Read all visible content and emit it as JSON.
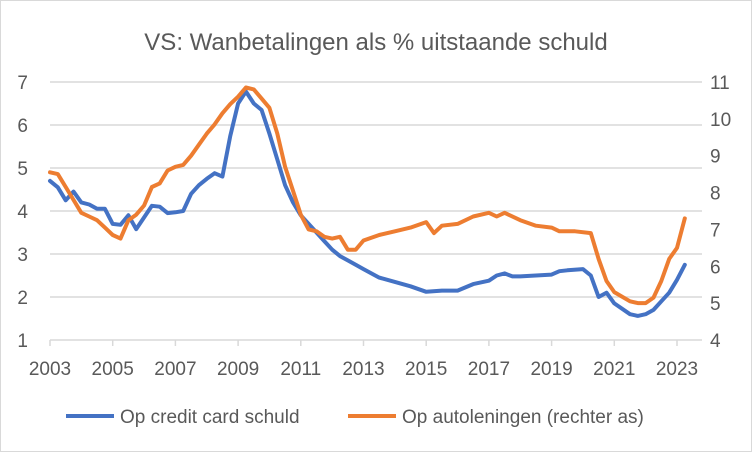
{
  "chart_data": {
    "type": "line",
    "title": "VS: Wanbetalingen als % uitstaande schuld",
    "xlabel": "",
    "ylabel": "",
    "x_ticks": [
      "2003",
      "2005",
      "2007",
      "2009",
      "2011",
      "2013",
      "2015",
      "2017",
      "2019",
      "2021",
      "2023"
    ],
    "x_tick_values": [
      2003,
      2005,
      2007,
      2009,
      2011,
      2013,
      2015,
      2017,
      2019,
      2021,
      2023
    ],
    "xlim": [
      2003,
      2023.25
    ],
    "ylim_left": [
      1,
      7
    ],
    "ylim_right": [
      4,
      11
    ],
    "y_ticks_left": [
      "1",
      "2",
      "3",
      "4",
      "5",
      "6",
      "7"
    ],
    "y_ticks_right": [
      "4",
      "5",
      "6",
      "7",
      "8",
      "9",
      "10",
      "11"
    ],
    "grid": true,
    "legend_position": "bottom",
    "colors": {
      "credit": "#4472C4",
      "auto": "#ED7D31",
      "grid": "#D9D9D9",
      "text": "#595959"
    },
    "series": [
      {
        "name": "Op credit card schuld",
        "axis": "left",
        "x": [
          2003,
          2003.25,
          2003.5,
          2003.75,
          2004,
          2004.25,
          2004.5,
          2004.75,
          2005,
          2005.25,
          2005.5,
          2005.75,
          2006,
          2006.25,
          2006.5,
          2006.75,
          2007,
          2007.25,
          2007.5,
          2007.75,
          2008,
          2008.25,
          2008.5,
          2008.75,
          2009,
          2009.25,
          2009.5,
          2009.75,
          2010,
          2010.25,
          2010.5,
          2010.75,
          2011,
          2011.25,
          2011.5,
          2011.75,
          2012,
          2012.25,
          2012.5,
          2012.75,
          2013,
          2013.5,
          2014,
          2014.5,
          2015,
          2015.5,
          2016,
          2016.5,
          2017,
          2017.25,
          2017.5,
          2017.75,
          2018,
          2018.5,
          2019,
          2019.25,
          2019.5,
          2020,
          2020.25,
          2020.5,
          2020.75,
          2021,
          2021.5,
          2021.75,
          2022,
          2022.25,
          2022.5,
          2022.75,
          2023,
          2023.25
        ],
        "values": [
          4.7,
          4.55,
          4.25,
          4.45,
          4.2,
          4.15,
          4.05,
          4.05,
          3.7,
          3.68,
          3.9,
          3.58,
          3.85,
          4.12,
          4.1,
          3.95,
          3.97,
          4.0,
          4.4,
          4.6,
          4.75,
          4.88,
          4.8,
          5.75,
          6.5,
          6.78,
          6.5,
          6.35,
          5.8,
          5.2,
          4.6,
          4.2,
          3.9,
          3.7,
          3.5,
          3.3,
          3.1,
          2.95,
          2.85,
          2.75,
          2.65,
          2.45,
          2.35,
          2.25,
          2.12,
          2.15,
          2.15,
          2.3,
          2.38,
          2.5,
          2.55,
          2.48,
          2.48,
          2.5,
          2.52,
          2.6,
          2.62,
          2.65,
          2.5,
          2.0,
          2.1,
          1.85,
          1.6,
          1.56,
          1.6,
          1.7,
          1.9,
          2.1,
          2.4,
          2.75
        ]
      },
      {
        "name": "Op autoleningen (rechter as)",
        "axis": "right",
        "x": [
          2003,
          2003.25,
          2003.5,
          2003.75,
          2004,
          2004.25,
          2004.5,
          2004.75,
          2005,
          2005.25,
          2005.5,
          2005.75,
          2006,
          2006.25,
          2006.5,
          2006.75,
          2007,
          2007.25,
          2007.5,
          2007.75,
          2008,
          2008.25,
          2008.5,
          2008.75,
          2009,
          2009.25,
          2009.5,
          2009.75,
          2010,
          2010.25,
          2010.5,
          2010.75,
          2011,
          2011.25,
          2011.5,
          2011.75,
          2012,
          2012.25,
          2012.5,
          2012.75,
          2013,
          2013.5,
          2014,
          2014.5,
          2015,
          2015.25,
          2015.5,
          2016,
          2016.5,
          2017,
          2017.25,
          2017.5,
          2018,
          2018.5,
          2019,
          2019.25,
          2019.75,
          2020.25,
          2020.5,
          2020.75,
          2021,
          2021.5,
          2021.75,
          2022,
          2022.25,
          2022.5,
          2022.75,
          2023,
          2023.25
        ],
        "values": [
          8.55,
          8.5,
          8.15,
          7.8,
          7.45,
          7.35,
          7.25,
          7.05,
          6.85,
          6.75,
          7.25,
          7.4,
          7.65,
          8.15,
          8.25,
          8.6,
          8.7,
          8.75,
          9.0,
          9.3,
          9.6,
          9.85,
          10.15,
          10.4,
          10.6,
          10.85,
          10.8,
          10.55,
          10.3,
          9.6,
          8.7,
          8.05,
          7.4,
          7.0,
          6.95,
          6.8,
          6.75,
          6.8,
          6.45,
          6.45,
          6.7,
          6.85,
          6.95,
          7.05,
          7.2,
          6.9,
          7.1,
          7.15,
          7.35,
          7.45,
          7.35,
          7.45,
          7.25,
          7.1,
          7.05,
          6.95,
          6.95,
          6.9,
          6.2,
          5.6,
          5.3,
          5.05,
          5.0,
          5.0,
          5.15,
          5.6,
          6.2,
          6.5,
          7.3
        ]
      }
    ]
  }
}
